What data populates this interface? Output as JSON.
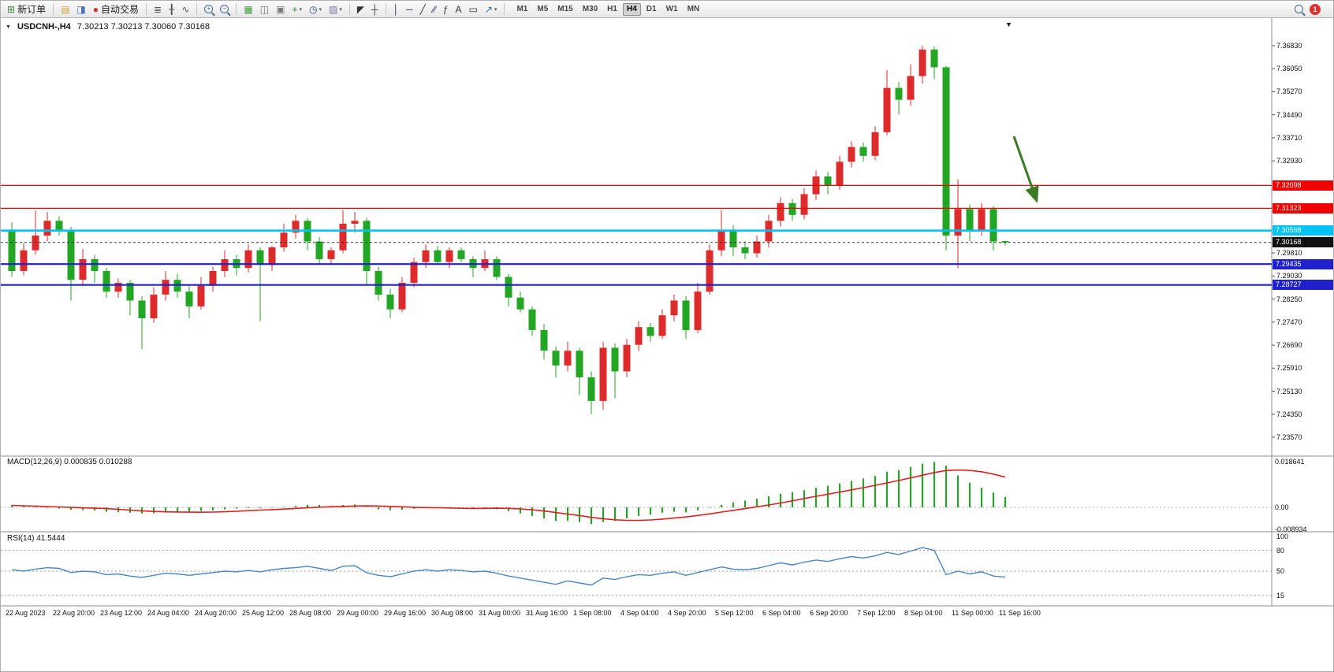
{
  "icons": {
    "menu_triangle": "▼",
    "scroll_marker": "▼",
    "caret": "▾"
  },
  "colors": {
    "up": "#dd2a2a",
    "down": "#23a623",
    "macd_hist": "#2ca02c",
    "macd_signal": "#e02020",
    "rsi_line": "#4a86c8",
    "line_red": "#f00000",
    "line_cyan": "#00c3f5",
    "line_blue": "#2020cc",
    "current_dash": "#333333",
    "arrow": "#3c7a28"
  },
  "toolbar": {
    "items": [
      {
        "name": "new-order-button",
        "icon": "new-order-icon",
        "glyph": "⊞",
        "color": "#3a8a3a",
        "label": "新订单"
      },
      {
        "sep": true
      },
      {
        "name": "new-chart-button",
        "icon": "new-chart-icon",
        "glyph": "▤",
        "color": "#caa23a"
      },
      {
        "name": "profiles-button",
        "icon": "profiles-icon",
        "glyph": "◨",
        "color": "#4a6fb8"
      },
      {
        "name": "autotrading-button",
        "icon": "autotrading-icon",
        "glyph": "●",
        "color": "#cc3333",
        "label": "自动交易"
      },
      {
        "sep": true
      },
      {
        "name": "bars-chart-button",
        "icon": "bar-chart-icon",
        "glyph": "≣",
        "color": "#555555"
      },
      {
        "name": "candlestick-chart-button",
        "icon": "candlestick-icon",
        "glyph": "╂",
        "color": "#555555"
      },
      {
        "name": "line-chart-button",
        "icon": "line-chart-icon",
        "glyph": "∿",
        "color": "#555555"
      },
      {
        "sep": true
      },
      {
        "name": "zoom-in-button",
        "icon": "zoom-in-icon",
        "mag": "+"
      },
      {
        "name": "zoom-out-button",
        "icon": "zoom-out-icon",
        "mag": "−"
      },
      {
        "sep": true
      },
      {
        "name": "tile-windows-button",
        "icon": "tile-windows-icon",
        "glyph": "▦",
        "color": "#3a9c3a"
      },
      {
        "name": "cascade-windows-button",
        "icon": "cascade-windows-icon",
        "glyph": "◫",
        "color": "#777777"
      },
      {
        "name": "arrange-windows-button",
        "icon": "arrange-windows-icon",
        "glyph": "▣",
        "color": "#777777"
      },
      {
        "name": "indicators-button",
        "icon": "add-indicator-icon",
        "glyph": "+",
        "color": "#2a8a2a",
        "caret": true
      },
      {
        "name": "periods-button",
        "icon": "clock-icon",
        "glyph": "◷",
        "color": "#335577",
        "caret": true
      },
      {
        "name": "templates-button",
        "icon": "template-icon",
        "glyph": "▨",
        "color": "#7a7a9a",
        "caret": true
      },
      {
        "sep": true
      },
      {
        "name": "cursor-button",
        "icon": "cursor-icon",
        "glyph": "◤",
        "color": "#333333"
      },
      {
        "name": "crosshair-button",
        "icon": "crosshair-icon",
        "glyph": "┼",
        "color": "#333333"
      },
      {
        "sep": true
      },
      {
        "name": "vertical-line-button",
        "icon": "vertical-line-icon",
        "glyph": "│",
        "color": "#333355"
      },
      {
        "name": "horizontal-line-button",
        "icon": "horizontal-line-icon",
        "glyph": "─",
        "color": "#333355"
      },
      {
        "name": "trendline-button",
        "icon": "trendline-icon",
        "glyph": "╱",
        "color": "#333355"
      },
      {
        "name": "channel-button",
        "icon": "equidistant-channel-icon",
        "glyph": "∕∕",
        "color": "#333355"
      },
      {
        "name": "fibonacci-button",
        "icon": "fibonacci-icon",
        "glyph": "ƒ",
        "color": "#333355"
      },
      {
        "name": "text-button",
        "icon": "text-icon",
        "glyph": "A",
        "color": "#333333"
      },
      {
        "name": "label-button",
        "icon": "text-label-icon",
        "glyph": "▭",
        "color": "#333333"
      },
      {
        "name": "arrows-button",
        "icon": "arrow-objects-icon",
        "glyph": "↗",
        "color": "#2a6aaa",
        "caret": true
      },
      {
        "sep": true
      }
    ],
    "timeframes": [
      "M1",
      "M5",
      "M15",
      "M30",
      "H1",
      "H4",
      "D1",
      "W1",
      "MN"
    ],
    "active_timeframe": "H4",
    "notification_count": "1"
  },
  "chart_data": {
    "type": "candlestick",
    "symbol_tf": "USDCNH-,H4",
    "ohlc": "7.30213 7.30213 7.30060 7.30168",
    "current": {
      "open": "7.30213",
      "high": "7.30213",
      "low": "7.30060",
      "close": "7.30168"
    },
    "price_axis": {
      "max": 7.3683,
      "min": 7.2357,
      "labels": [
        "7.36830",
        "7.36050",
        "7.35270",
        "7.34490",
        "7.33710",
        "7.32930",
        "7.29810",
        "7.29030",
        "7.28250",
        "7.27470",
        "7.26690",
        "7.25910",
        "7.25130",
        "7.24350",
        "7.23570"
      ]
    },
    "hlines": [
      {
        "label": "7.32098",
        "price": 7.32098,
        "color": "#f00000",
        "width": 1.3
      },
      {
        "label": "7.31323",
        "price": 7.31323,
        "color": "#f00000",
        "width": 1.3
      },
      {
        "label": "7.30568",
        "price": 7.30568,
        "color": "#00c3f5",
        "width": 2.6
      },
      {
        "label": "7.29435",
        "price": 7.29435,
        "color": "#2020cc",
        "width": 2.2
      },
      {
        "label": "7.28727",
        "price": 7.28727,
        "color": "#2020cc",
        "width": 2.2
      }
    ],
    "current_price": {
      "label": "7.30168",
      "price": 7.30168
    },
    "candles": [
      [
        7.306,
        7.3085,
        7.29,
        7.292
      ],
      [
        7.292,
        7.3015,
        7.2905,
        7.299
      ],
      [
        7.299,
        7.3125,
        7.2975,
        7.304
      ],
      [
        7.304,
        7.312,
        7.302,
        7.309
      ],
      [
        7.309,
        7.3105,
        7.304,
        7.306
      ],
      [
        7.306,
        7.307,
        7.282,
        7.289
      ],
      [
        7.289,
        7.2995,
        7.287,
        7.296
      ],
      [
        7.296,
        7.2975,
        7.288,
        7.292
      ],
      [
        7.292,
        7.293,
        7.283,
        7.285
      ],
      [
        7.285,
        7.2895,
        7.283,
        7.288
      ],
      [
        7.288,
        7.289,
        7.277,
        7.282
      ],
      [
        7.282,
        7.2835,
        7.2655,
        7.276
      ],
      [
        7.276,
        7.2865,
        7.2745,
        7.284
      ],
      [
        7.284,
        7.292,
        7.282,
        7.289
      ],
      [
        7.289,
        7.291,
        7.283,
        7.285
      ],
      [
        7.285,
        7.287,
        7.276,
        7.28
      ],
      [
        7.28,
        7.29,
        7.279,
        7.287
      ],
      [
        7.287,
        7.2935,
        7.285,
        7.292
      ],
      [
        7.292,
        7.299,
        7.29,
        7.296
      ],
      [
        7.296,
        7.2975,
        7.2905,
        7.293
      ],
      [
        7.293,
        7.301,
        7.2915,
        7.299
      ],
      [
        7.299,
        7.3,
        7.275,
        7.294
      ],
      [
        7.294,
        7.3005,
        7.292,
        7.3
      ],
      [
        7.3,
        7.308,
        7.2985,
        7.305
      ],
      [
        7.305,
        7.311,
        7.303,
        7.309
      ],
      [
        7.309,
        7.31,
        7.299,
        7.302
      ],
      [
        7.302,
        7.3035,
        7.294,
        7.296
      ],
      [
        7.296,
        7.3,
        7.294,
        7.299
      ],
      [
        7.299,
        7.3125,
        7.298,
        7.308
      ],
      [
        7.308,
        7.312,
        7.305,
        7.309
      ],
      [
        7.309,
        7.31,
        7.287,
        7.292
      ],
      [
        7.292,
        7.2935,
        7.282,
        7.284
      ],
      [
        7.284,
        7.286,
        7.276,
        7.279
      ],
      [
        7.279,
        7.29,
        7.278,
        7.288
      ],
      [
        7.288,
        7.2965,
        7.2865,
        7.295
      ],
      [
        7.295,
        7.301,
        7.293,
        7.299
      ],
      [
        7.299,
        7.3005,
        7.294,
        7.295
      ],
      [
        7.295,
        7.3,
        7.293,
        7.299
      ],
      [
        7.299,
        7.3,
        7.295,
        7.296
      ],
      [
        7.296,
        7.297,
        7.29,
        7.293
      ],
      [
        7.293,
        7.299,
        7.292,
        7.296
      ],
      [
        7.296,
        7.297,
        7.289,
        7.29
      ],
      [
        7.29,
        7.291,
        7.28,
        7.283
      ],
      [
        7.283,
        7.285,
        7.278,
        7.279
      ],
      [
        7.279,
        7.28,
        7.27,
        7.272
      ],
      [
        7.272,
        7.274,
        7.262,
        7.265
      ],
      [
        7.265,
        7.2665,
        7.256,
        7.26
      ],
      [
        7.26,
        7.268,
        7.258,
        7.265
      ],
      [
        7.265,
        7.266,
        7.25,
        7.256
      ],
      [
        7.256,
        7.258,
        7.2435,
        7.248
      ],
      [
        7.248,
        7.268,
        7.245,
        7.266
      ],
      [
        7.266,
        7.2675,
        7.249,
        7.258
      ],
      [
        7.258,
        7.269,
        7.256,
        7.267
      ],
      [
        7.267,
        7.275,
        7.265,
        7.273
      ],
      [
        7.273,
        7.2745,
        7.268,
        7.27
      ],
      [
        7.27,
        7.279,
        7.269,
        7.277
      ],
      [
        7.277,
        7.284,
        7.275,
        7.282
      ],
      [
        7.282,
        7.2835,
        7.269,
        7.272
      ],
      [
        7.272,
        7.288,
        7.271,
        7.285
      ],
      [
        7.285,
        7.301,
        7.284,
        7.299
      ],
      [
        7.299,
        7.3125,
        7.297,
        7.306
      ],
      [
        7.306,
        7.3075,
        7.297,
        7.3
      ],
      [
        7.3,
        7.302,
        7.296,
        7.298
      ],
      [
        7.298,
        7.304,
        7.2965,
        7.302
      ],
      [
        7.302,
        7.311,
        7.3,
        7.309
      ],
      [
        7.309,
        7.317,
        7.307,
        7.315
      ],
      [
        7.315,
        7.3165,
        7.309,
        7.311
      ],
      [
        7.311,
        7.32,
        7.3095,
        7.318
      ],
      [
        7.318,
        7.326,
        7.316,
        7.324
      ],
      [
        7.324,
        7.3255,
        7.318,
        7.321
      ],
      [
        7.321,
        7.331,
        7.3195,
        7.329
      ],
      [
        7.329,
        7.336,
        7.327,
        7.334
      ],
      [
        7.334,
        7.3355,
        7.329,
        7.331
      ],
      [
        7.331,
        7.341,
        7.3295,
        7.339
      ],
      [
        7.339,
        7.36,
        7.338,
        7.354
      ],
      [
        7.354,
        7.356,
        7.345,
        7.35
      ],
      [
        7.35,
        7.362,
        7.348,
        7.358
      ],
      [
        7.358,
        7.3683,
        7.3555,
        7.367
      ],
      [
        7.367,
        7.368,
        7.357,
        7.361
      ],
      [
        7.361,
        7.3615,
        7.299,
        7.304
      ],
      [
        7.304,
        7.323,
        7.293,
        7.313
      ],
      [
        7.313,
        7.3145,
        7.302,
        7.306
      ],
      [
        7.306,
        7.315,
        7.304,
        7.313
      ],
      [
        7.313,
        7.314,
        7.299,
        7.302
      ],
      [
        7.30213,
        7.30213,
        7.3006,
        7.30168
      ]
    ],
    "time_labels": [
      "22 Aug 2023",
      "22 Aug 20:00",
      "23 Aug 12:00",
      "24 Aug 04:00",
      "24 Aug 20:00",
      "25 Aug 12:00",
      "28 Aug 08:00",
      "29 Aug 00:00",
      "29 Aug 16:00",
      "30 Aug 08:00",
      "31 Aug 00:00",
      "31 Aug 16:00",
      "1 Sep 08:00",
      "4 Sep 04:00",
      "4 Sep 20:00",
      "5 Sep 12:00",
      "6 Sep 04:00",
      "6 Sep 20:00",
      "7 Sep 12:00",
      "8 Sep 04:00",
      "11 Sep 00:00",
      "11 Sep 16:00"
    ],
    "macd": {
      "label": "MACD(12,26,9) 0.000835 0.010288",
      "axis": [
        "0.018641",
        "0.00",
        "-0.008934"
      ],
      "hist": [
        0.0008,
        0.0005,
        0.0002,
        -0.0002,
        -0.0005,
        -0.001,
        -0.0012,
        -0.0013,
        -0.0018,
        -0.002,
        -0.0022,
        -0.0025,
        -0.0024,
        -0.002,
        -0.0018,
        -0.0017,
        -0.0015,
        -0.0012,
        -0.0008,
        -0.0005,
        -0.0003,
        -0.0004,
        -0.0002,
        0.0002,
        0.0006,
        0.001,
        0.001,
        0.0006,
        0.001,
        0.0012,
        0.0002,
        -0.0008,
        -0.0012,
        -0.001,
        -0.0006,
        -0.0002,
        -0.0001,
        0.0001,
        0,
        -0.0003,
        -0.0004,
        -0.0008,
        -0.0015,
        -0.0025,
        -0.0035,
        -0.0045,
        -0.0055,
        -0.0055,
        -0.006,
        -0.0068,
        -0.006,
        -0.0055,
        -0.0045,
        -0.0035,
        -0.003,
        -0.0022,
        -0.0018,
        -0.002,
        -0.0012,
        -0.0002,
        0.001,
        0.002,
        0.0028,
        0.0035,
        0.0045,
        0.0055,
        0.0062,
        0.007,
        0.008,
        0.0088,
        0.0098,
        0.0108,
        0.0118,
        0.0128,
        0.0145,
        0.0152,
        0.0165,
        0.0178,
        0.0186,
        0.017,
        0.013,
        0.01,
        0.008,
        0.006,
        0.0042
      ]
    },
    "rsi": {
      "label": "RSI(14) 41.5444",
      "axis": [
        "100",
        "80",
        "50",
        "15"
      ],
      "levels": [
        80,
        50,
        15
      ],
      "values": [
        52,
        50,
        53,
        55,
        54,
        48,
        50,
        49,
        45,
        46,
        43,
        41,
        44,
        47,
        46,
        44,
        46,
        48,
        50,
        49,
        51,
        49,
        52,
        54,
        55,
        57,
        54,
        51,
        57,
        58,
        48,
        44,
        42,
        46,
        50,
        52,
        50,
        52,
        51,
        49,
        50,
        47,
        43,
        40,
        37,
        34,
        31,
        36,
        33,
        30,
        40,
        38,
        42,
        45,
        44,
        47,
        49,
        44,
        48,
        52,
        56,
        53,
        52,
        54,
        58,
        62,
        59,
        63,
        66,
        64,
        68,
        71,
        69,
        72,
        77,
        74,
        79,
        84,
        80,
        45,
        50,
        46,
        49,
        43,
        41.5
      ]
    }
  }
}
